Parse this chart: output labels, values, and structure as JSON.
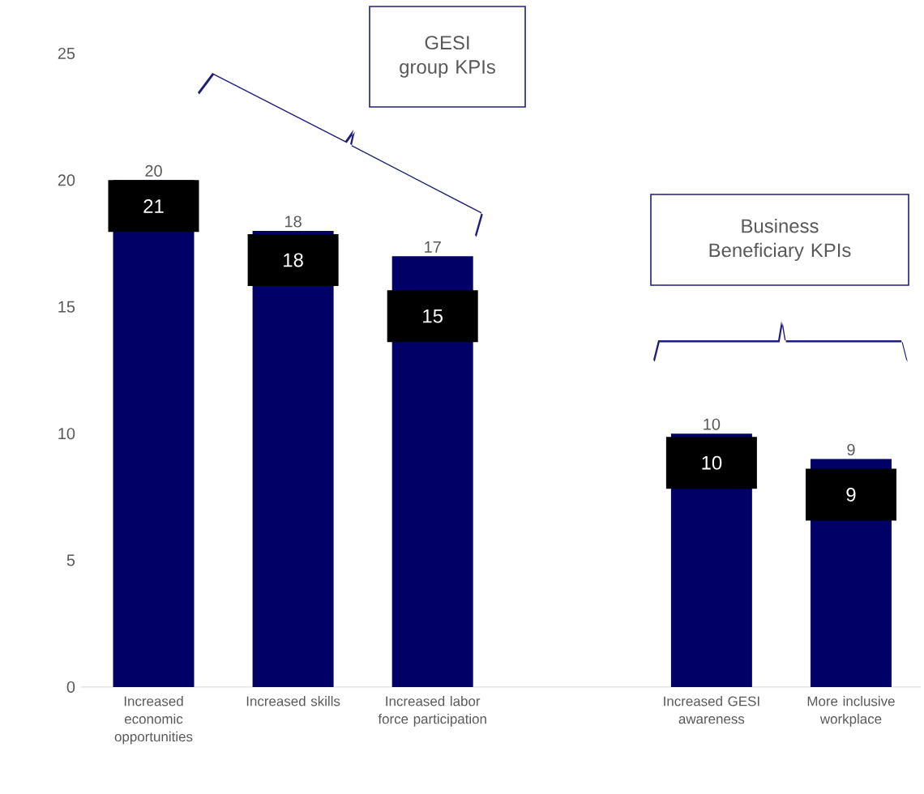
{
  "chart_data": {
    "type": "bar",
    "categories": [
      "Increased economic opportunities",
      "Increased skills",
      "Increased labor force participation",
      null,
      "Increased GESI awareness",
      "More inclusive workplace"
    ],
    "values": [
      20,
      18,
      17,
      null,
      10,
      9
    ],
    "value_labels": [
      "20",
      "18",
      "17",
      null,
      "10",
      "9"
    ],
    "color": "#000066",
    "ylim": [
      0,
      25
    ],
    "yticks": [
      0,
      5,
      10,
      15,
      20,
      25
    ],
    "grid": false,
    "annotations": [
      "21",
      "18",
      "15",
      "10",
      "9",
      "GESI group KPIs",
      "Business Beneficiary KPIs"
    ]
  }
}
